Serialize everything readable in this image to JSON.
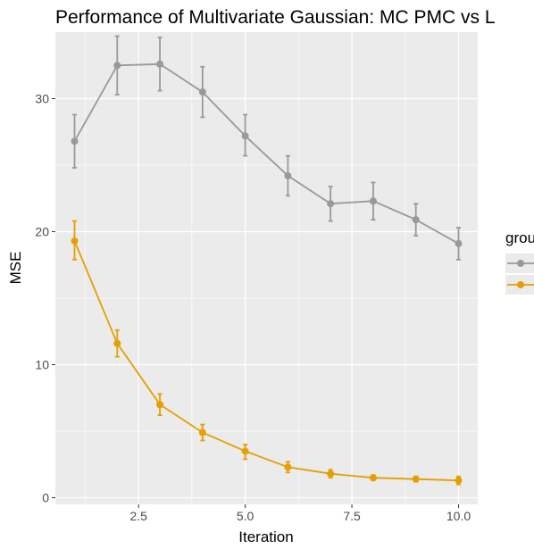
{
  "chart_data": {
    "type": "line",
    "title": "Performance of Multivariate Gaussian: MC PMC vs L",
    "xlabel": "Iteration",
    "ylabel": "MSE",
    "x": [
      1,
      2,
      3,
      4,
      5,
      6,
      7,
      8,
      9,
      10
    ],
    "xlim": [
      0.55,
      10.45
    ],
    "ylim": [
      -0.5,
      35
    ],
    "xticks": [
      2.5,
      5.0,
      7.5,
      10.0
    ],
    "xtick_labels": [
      "2.5",
      "5.0",
      "7.5",
      "10.0"
    ],
    "yticks": [
      0,
      10,
      20,
      30
    ],
    "ytick_labels": [
      "0",
      "10",
      "20",
      "30"
    ],
    "grid": true,
    "legend": {
      "title": "grou",
      "position": "right"
    },
    "series": [
      {
        "color": "#999999",
        "values": [
          26.8,
          32.5,
          32.6,
          30.5,
          27.2,
          24.2,
          22.1,
          22.3,
          20.9,
          19.1
        ],
        "err_low": [
          24.8,
          30.3,
          30.6,
          28.6,
          25.7,
          22.7,
          20.8,
          20.9,
          19.7,
          17.9
        ],
        "err_high": [
          28.8,
          34.7,
          34.6,
          32.4,
          28.8,
          25.7,
          23.4,
          23.7,
          22.1,
          20.3
        ]
      },
      {
        "color": "#E69F00",
        "values": [
          19.3,
          11.6,
          7.0,
          4.9,
          3.5,
          2.3,
          1.8,
          1.5,
          1.4,
          1.3
        ],
        "err_low": [
          17.9,
          10.6,
          6.2,
          4.3,
          2.9,
          1.9,
          1.5,
          1.3,
          1.2,
          1.0
        ],
        "err_high": [
          20.8,
          12.6,
          7.8,
          5.5,
          4.0,
          2.7,
          2.1,
          1.7,
          1.6,
          1.6
        ]
      }
    ]
  }
}
